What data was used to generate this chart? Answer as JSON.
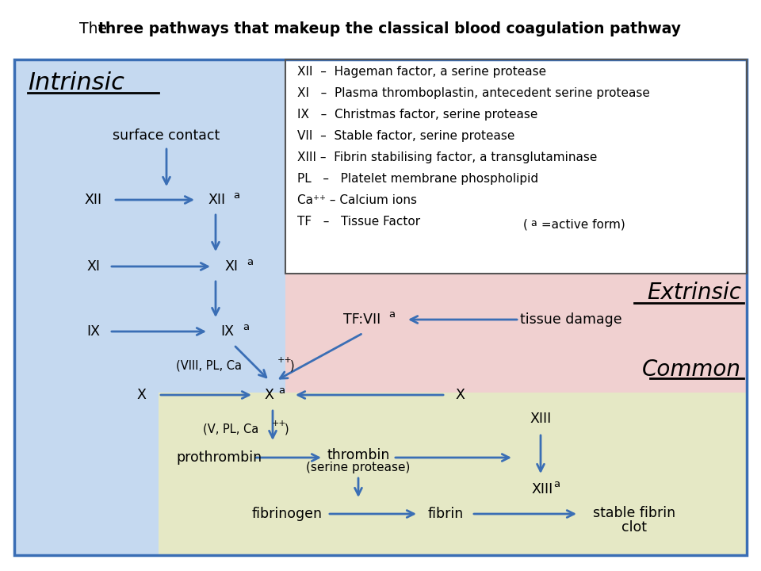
{
  "title_normal": "The ",
  "title_bold": "three pathways that makeup the classical blood coagulation pathway",
  "bg_color": "#ffffff",
  "outer_box_color": "#3a6eb5",
  "intrinsic_bg": "#c5d9f0",
  "extrinsic_bg": "#f0d0d0",
  "common_bg": "#e5e8c5",
  "legend_bg": "#ffffff",
  "arrow_color": "#3a6eb5",
  "text_color": "#000000",
  "legend_lines": [
    "XII  –  Hageman factor, a serine protease",
    "XI   –  Plasma thromboplastin, antecedent serine protease",
    "IX   –  Christmas factor, serine protease",
    "VII  –  Stable factor, serine protease",
    "XIII –  Fibrin stabilising factor, a transglutaminase",
    "PL   –   Platelet membrane phospholipid",
    "Ca⁺⁺ – Calcium ions",
    "TF   –   Tissue Factor"
  ]
}
